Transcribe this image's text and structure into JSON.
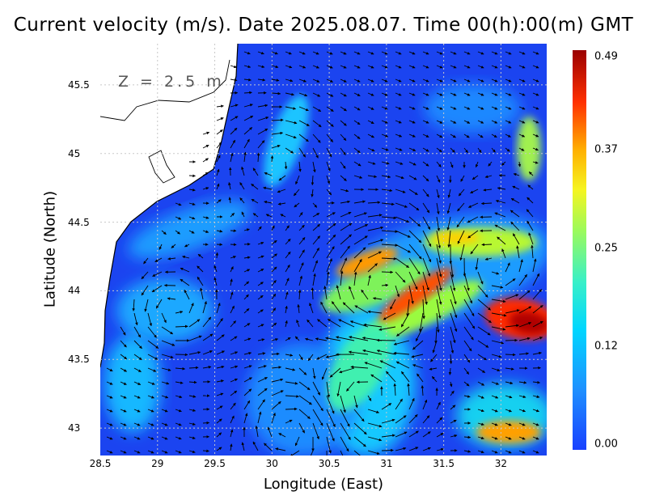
{
  "title": "Current velocity (m/s). Date 2025.08.07. Time 00(h):00(m) GMT",
  "map": {
    "xlabel": "Longitude (East)",
    "ylabel": "Latitude (North)",
    "depth_label": "Z = 2.5 m",
    "x_ticks": [
      "28.5",
      "29",
      "29.5",
      "30",
      "30.5",
      "31",
      "31.5",
      "32"
    ],
    "y_ticks": [
      "45.5",
      "45",
      "44.5",
      "44",
      "43.5",
      "43"
    ],
    "lon_range": [
      28.5,
      32.4
    ],
    "lat_range": [
      42.8,
      45.8
    ],
    "colorbar": {
      "ticks": [
        "0.49",
        "0.37",
        "0.25",
        "0.12",
        "0.00"
      ],
      "range": [
        0.0,
        0.49
      ]
    },
    "colors": {
      "background_speed": "#1b44f0",
      "land": "#ffffff",
      "coastline": "#000000",
      "grid": "#c8c8c8",
      "arrows": "#000000"
    }
  }
}
